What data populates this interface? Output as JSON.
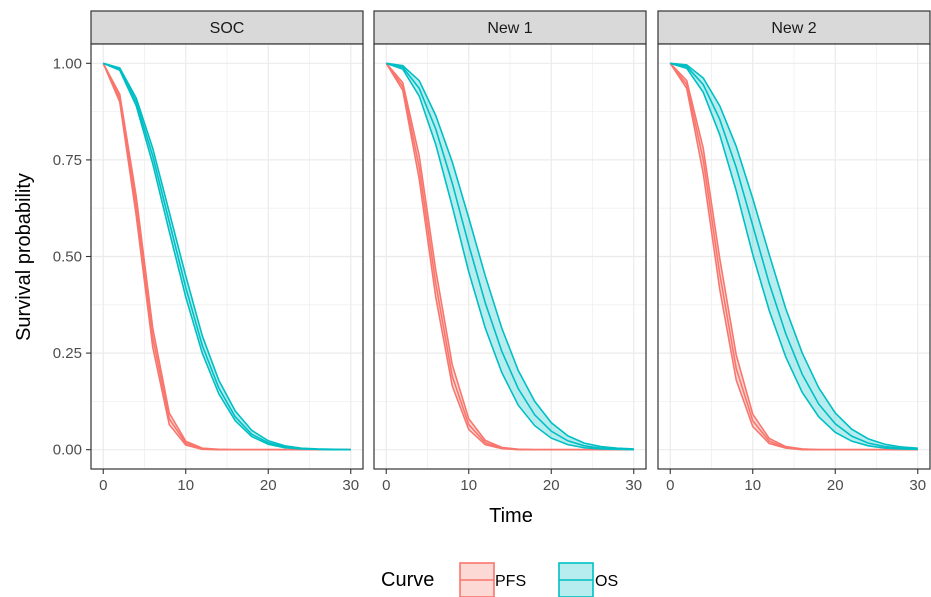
{
  "chart_data": {
    "type": "line",
    "facets": [
      "SOC",
      "New 1",
      "New 2"
    ],
    "xlabel": "Time",
    "ylabel": "Survival probability",
    "xlim": [
      0,
      30
    ],
    "ylim": [
      0,
      1
    ],
    "x_ticks": [
      0,
      10,
      20,
      30
    ],
    "y_ticks": [
      0.0,
      0.25,
      0.5,
      0.75,
      1.0
    ],
    "y_tick_labels": [
      "0.00",
      "0.25",
      "0.50",
      "0.75",
      "1.00"
    ],
    "x_tick_labels": [
      "0",
      "10",
      "20",
      "30"
    ],
    "grid": true,
    "legend": {
      "title": "Curve",
      "position": "bottom",
      "entries": [
        {
          "name": "PFS",
          "color": "#F8766D"
        },
        {
          "name": "OS",
          "color": "#00BFC4"
        }
      ]
    },
    "x": [
      0,
      2,
      4,
      6,
      8,
      10,
      12,
      14,
      16,
      18,
      20,
      22,
      24,
      26,
      28,
      30
    ],
    "panels": [
      {
        "facet": "SOC",
        "series": [
          {
            "name": "PFS",
            "color": "#F8766D",
            "mean": [
              1.0,
              0.91,
              0.63,
              0.29,
              0.08,
              0.017,
              0.003,
              0.0,
              0.0,
              0.0,
              0.0,
              0.0,
              0.0,
              0.0,
              0.0,
              0.0
            ],
            "lower": [
              1.0,
              0.9,
              0.605,
              0.265,
              0.065,
              0.012,
              0.001,
              0.0,
              0.0,
              0.0,
              0.0,
              0.0,
              0.0,
              0.0,
              0.0,
              0.0
            ],
            "upper": [
              1.0,
              0.92,
              0.655,
              0.315,
              0.095,
              0.022,
              0.004,
              0.001,
              0.0,
              0.0,
              0.0,
              0.0,
              0.0,
              0.0,
              0.0,
              0.0
            ]
          },
          {
            "name": "OS",
            "color": "#00BFC4",
            "mean": [
              1.0,
              0.985,
              0.9,
              0.76,
              0.59,
              0.42,
              0.27,
              0.16,
              0.085,
              0.04,
              0.018,
              0.007,
              0.003,
              0.001,
              0.0,
              0.0
            ],
            "lower": [
              1.0,
              0.982,
              0.89,
              0.74,
              0.565,
              0.395,
              0.25,
              0.145,
              0.075,
              0.034,
              0.014,
              0.005,
              0.002,
              0.001,
              0.0,
              0.0
            ],
            "upper": [
              1.0,
              0.988,
              0.91,
              0.78,
              0.615,
              0.45,
              0.295,
              0.18,
              0.1,
              0.05,
              0.023,
              0.01,
              0.004,
              0.002,
              0.001,
              0.0
            ]
          }
        ]
      },
      {
        "facet": "New 1",
        "series": [
          {
            "name": "PFS",
            "color": "#F8766D",
            "mean": [
              1.0,
              0.94,
              0.73,
              0.43,
              0.19,
              0.065,
              0.018,
              0.004,
              0.001,
              0.0,
              0.0,
              0.0,
              0.0,
              0.0,
              0.0,
              0.0
            ],
            "lower": [
              1.0,
              0.93,
              0.7,
              0.395,
              0.165,
              0.052,
              0.013,
              0.003,
              0.0,
              0.0,
              0.0,
              0.0,
              0.0,
              0.0,
              0.0,
              0.0
            ],
            "upper": [
              1.0,
              0.95,
              0.76,
              0.465,
              0.22,
              0.08,
              0.024,
              0.006,
              0.001,
              0.0,
              0.0,
              0.0,
              0.0,
              0.0,
              0.0,
              0.0
            ]
          },
          {
            "name": "OS",
            "color": "#00BFC4",
            "mean": [
              1.0,
              0.99,
              0.935,
              0.83,
              0.69,
              0.53,
              0.38,
              0.255,
              0.158,
              0.09,
              0.048,
              0.023,
              0.01,
              0.004,
              0.002,
              0.001
            ],
            "lower": [
              1.0,
              0.985,
              0.915,
              0.79,
              0.63,
              0.46,
              0.315,
              0.2,
              0.115,
              0.062,
              0.03,
              0.013,
              0.005,
              0.002,
              0.001,
              0.0
            ],
            "upper": [
              1.0,
              0.994,
              0.955,
              0.865,
              0.745,
              0.6,
              0.45,
              0.315,
              0.205,
              0.125,
              0.07,
              0.036,
              0.017,
              0.008,
              0.004,
              0.002
            ]
          }
        ]
      },
      {
        "facet": "New 2",
        "series": [
          {
            "name": "PFS",
            "color": "#F8766D",
            "mean": [
              1.0,
              0.945,
              0.75,
              0.455,
              0.21,
              0.075,
              0.022,
              0.005,
              0.001,
              0.0,
              0.0,
              0.0,
              0.0,
              0.0,
              0.0,
              0.0
            ],
            "lower": [
              1.0,
              0.935,
              0.715,
              0.415,
              0.18,
              0.06,
              0.016,
              0.004,
              0.0,
              0.0,
              0.0,
              0.0,
              0.0,
              0.0,
              0.0,
              0.0
            ],
            "upper": [
              1.0,
              0.955,
              0.78,
              0.495,
              0.245,
              0.092,
              0.029,
              0.008,
              0.002,
              0.0,
              0.0,
              0.0,
              0.0,
              0.0,
              0.0,
              0.0
            ]
          },
          {
            "name": "OS",
            "color": "#00BFC4",
            "mean": [
              1.0,
              0.992,
              0.945,
              0.855,
              0.73,
              0.58,
              0.43,
              0.3,
              0.195,
              0.118,
              0.067,
              0.035,
              0.017,
              0.008,
              0.004,
              0.002
            ],
            "lower": [
              1.0,
              0.987,
              0.925,
              0.815,
              0.67,
              0.505,
              0.36,
              0.24,
              0.148,
              0.085,
              0.045,
              0.022,
              0.01,
              0.004,
              0.002,
              0.001
            ],
            "upper": [
              1.0,
              0.996,
              0.962,
              0.89,
              0.785,
              0.65,
              0.505,
              0.365,
              0.25,
              0.16,
              0.095,
              0.053,
              0.028,
              0.014,
              0.007,
              0.004
            ]
          }
        ]
      }
    ]
  }
}
